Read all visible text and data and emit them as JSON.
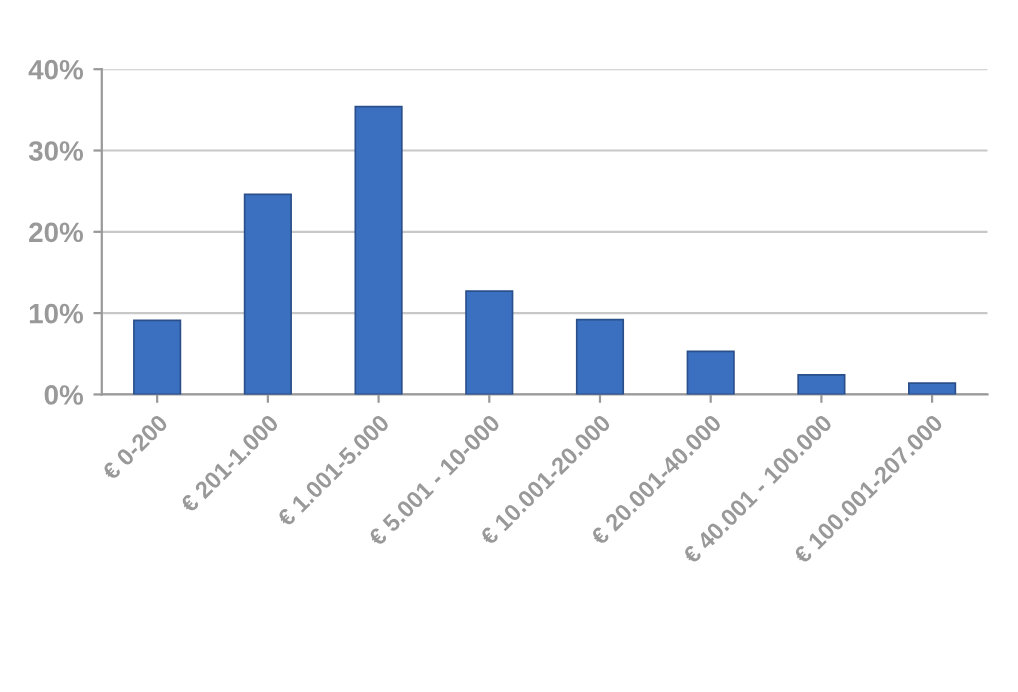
{
  "chart_data": {
    "type": "bar",
    "categories": [
      "€ 0-200",
      "€ 201-1.000",
      "€ 1.001-5.000",
      "€ 5.001 - 10-000",
      "€ 10.001-20.000",
      "€ 20.001-40.000",
      "€ 40.001 - 100.000",
      "€ 100.001-207.000"
    ],
    "values": [
      9.1,
      24.6,
      35.4,
      12.7,
      9.2,
      5.3,
      2.4,
      1.4
    ],
    "color": "#3b6fbf",
    "ylim": [
      0,
      40
    ],
    "yticks": [
      {
        "value": 0,
        "label": "0%"
      },
      {
        "value": 10,
        "label": "10%"
      },
      {
        "value": 20,
        "label": "20%"
      },
      {
        "value": 30,
        "label": "30%"
      },
      {
        "value": 40,
        "label": "40%"
      }
    ],
    "grid": "y"
  }
}
